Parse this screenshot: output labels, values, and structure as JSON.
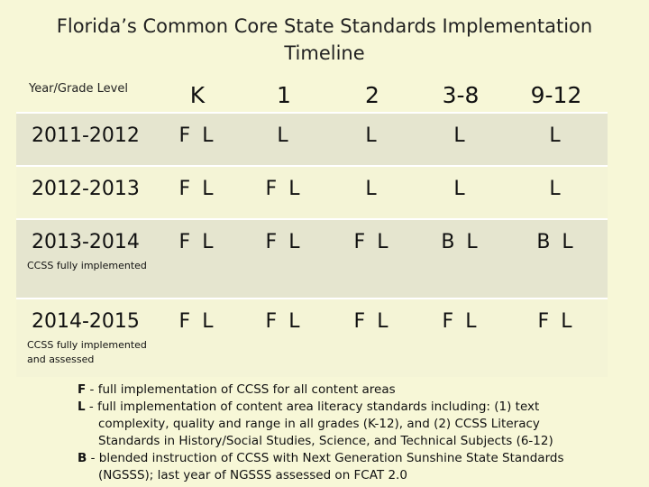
{
  "title_line1": "Florida’s Common Core State Standards Implementation",
  "title_line2": "Timeline",
  "table": {
    "header_label": "Year/Grade Level",
    "grades": [
      "K",
      "1",
      "2",
      "3-8",
      "9-12"
    ],
    "rows": [
      {
        "year": "2011-2012",
        "note": "",
        "cells": [
          "F L",
          "L",
          "L",
          "L",
          "L"
        ]
      },
      {
        "year": "2012-2013",
        "note": "",
        "cells": [
          "F L",
          "F L",
          "L",
          "L",
          "L"
        ]
      },
      {
        "year": "2013-2014",
        "note": "CCSS fully implemented",
        "cells": [
          "F L",
          "F L",
          "F L",
          "B L",
          "B L"
        ]
      },
      {
        "year": "2014-2015",
        "note1": "CCSS fully implemented",
        "note2": "and assessed",
        "cells": [
          "F L",
          "F L",
          "F L",
          "F L",
          "F L"
        ]
      }
    ]
  },
  "legend": {
    "f_key": "F",
    "f_text": " - full implementation of CCSS for all content areas",
    "l_key": "L",
    "l_text1": " - full implementation of content area literacy standards including:  (1) text",
    "l_text2": "complexity, quality and range in all grades (K-12), and (2) CCSS Literacy",
    "l_text3": "Standards in History/Social Studies, Science, and Technical Subjects (6-12)",
    "b_key": "B",
    "b_text1": " - blended instruction of CCSS with Next Generation Sunshine State Standards",
    "b_text2": "(NGSSS); last year of NGSSS assessed on FCAT 2.0"
  }
}
